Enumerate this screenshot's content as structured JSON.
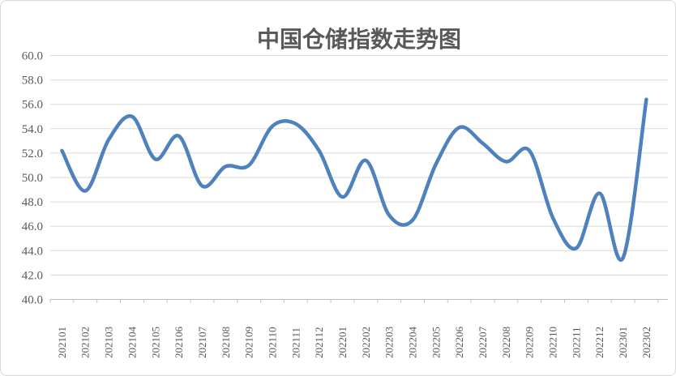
{
  "chart_data": {
    "type": "line",
    "title": "中国仓储指数走势图",
    "categories": [
      "202101",
      "202102",
      "202103",
      "202104",
      "202105",
      "202106",
      "202107",
      "202108",
      "202109",
      "202110",
      "202111",
      "202112",
      "202201",
      "202202",
      "202203",
      "202204",
      "202205",
      "202206",
      "202207",
      "202208",
      "202209",
      "202210",
      "202211",
      "202212",
      "202301",
      "202302"
    ],
    "values": [
      52.2,
      48.9,
      53.1,
      55.0,
      51.5,
      53.4,
      49.3,
      50.9,
      51.0,
      54.2,
      54.4,
      52.2,
      48.4,
      51.4,
      46.9,
      46.5,
      51.1,
      54.1,
      52.8,
      51.3,
      52.2,
      46.7,
      44.2,
      48.7,
      43.4,
      56.4
    ],
    "xlabel": "",
    "ylabel": "",
    "ylim": [
      40,
      60
    ],
    "ytick_interval": 2,
    "ytick_decimal_places": 1,
    "grid": true,
    "legend": false,
    "smooth_line": true,
    "line_color": "#4F81BD",
    "grid_color": "#D9D9D9",
    "axis_color": "#BFBFBF",
    "tick_text_color": "#595959",
    "title_color": "#595959",
    "background": "#FFFFFF"
  }
}
